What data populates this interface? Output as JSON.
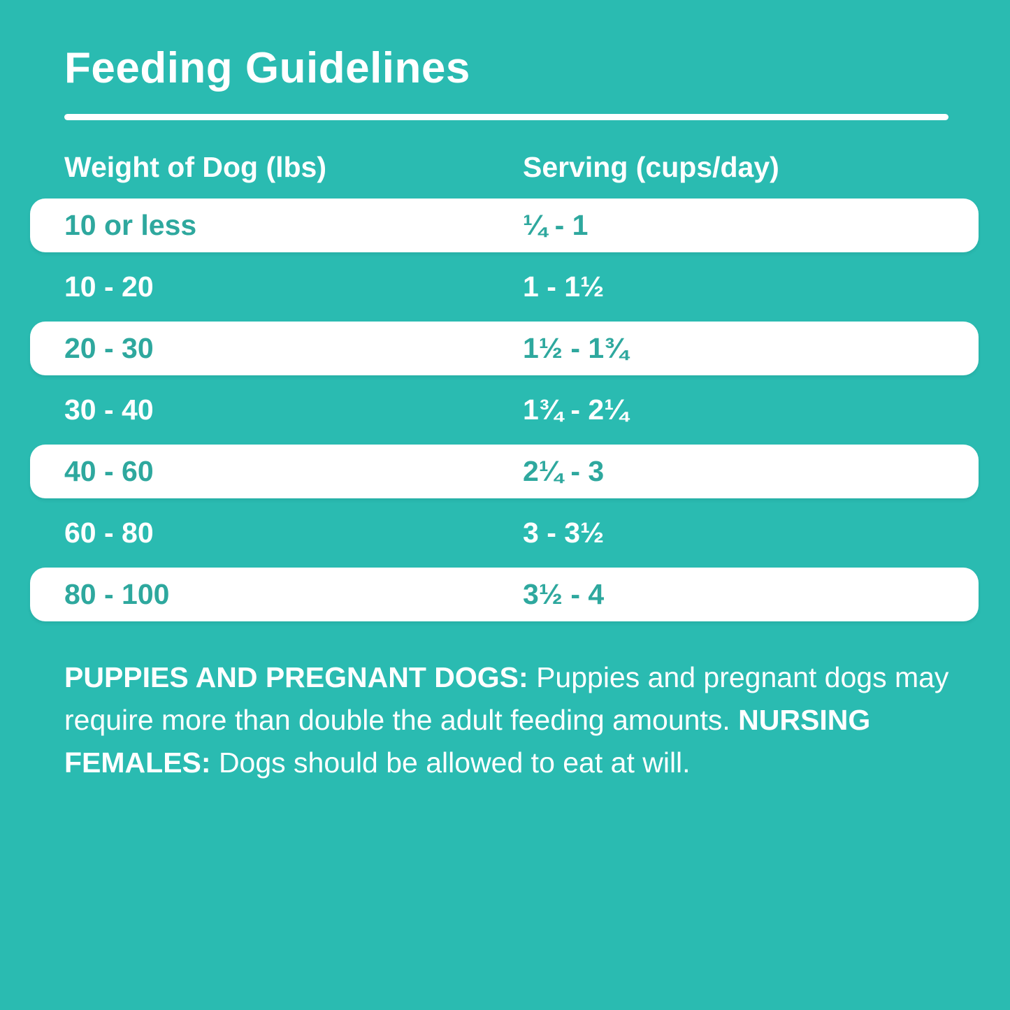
{
  "colors": {
    "background_teal": "#2ABBB1",
    "row_highlight_white": "#FFFFFF",
    "teal_text": "#2EA89E",
    "white_text": "#FFFFFF"
  },
  "title": "Feeding Guidelines",
  "table": {
    "headers": {
      "weight": "Weight of Dog (lbs)",
      "serving": "Serving (cups/day)"
    },
    "rows": [
      {
        "weight": "10 or less",
        "serving": "¼ - 1"
      },
      {
        "weight": "10 - 20",
        "serving": "1 - 1½"
      },
      {
        "weight": "20 - 30",
        "serving": "1½ - 1¾"
      },
      {
        "weight": "30 - 40",
        "serving": "1¾ - 2¼"
      },
      {
        "weight": "40 - 60",
        "serving": "2¼ - 3"
      },
      {
        "weight": "60 - 80",
        "serving": "3 - 3½"
      },
      {
        "weight": "80 - 100",
        "serving": "3½ - 4"
      }
    ]
  },
  "footer": {
    "bold1": "PUPPIES AND PREGNANT DOGS:",
    "text1": " Puppies and pregnant dogs may require more than double the adult feeding amounts. ",
    "bold2": "NURSING FEMALES:",
    "text2": " Dogs should be allowed to eat at will."
  }
}
